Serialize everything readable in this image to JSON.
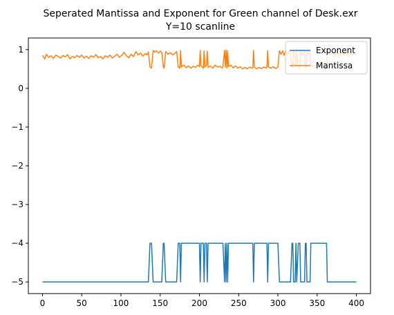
{
  "chart_data": {
    "type": "line",
    "title": "Seperated Mantissa and Exponent for Green channel of Desk.exr",
    "subtitle": "Y=10 scanline",
    "xlabel": "",
    "ylabel": "",
    "xlim": [
      -18,
      418
    ],
    "ylim": [
      -5.3,
      1.3
    ],
    "xticks": [
      0,
      50,
      100,
      150,
      200,
      250,
      300,
      350,
      400
    ],
    "yticks": [
      -5,
      -4,
      -3,
      -2,
      -1,
      0,
      1
    ],
    "grid": false,
    "legend_position": "top-right",
    "series": [
      {
        "name": "Exponent",
        "color": "#1f77b4",
        "points": [
          [
            0,
            -5
          ],
          [
            135,
            -5
          ],
          [
            137,
            -4
          ],
          [
            139,
            -4
          ],
          [
            141,
            -5
          ],
          [
            152,
            -5
          ],
          [
            154,
            -4
          ],
          [
            155,
            -4
          ],
          [
            157,
            -5
          ],
          [
            171,
            -5
          ],
          [
            173,
            -4
          ],
          [
            175,
            -4
          ],
          [
            176,
            -5
          ],
          [
            177,
            -4
          ],
          [
            200,
            -4
          ],
          [
            201,
            -5
          ],
          [
            202,
            -4
          ],
          [
            205,
            -4
          ],
          [
            206,
            -5
          ],
          [
            207,
            -4
          ],
          [
            209,
            -4
          ],
          [
            210,
            -5
          ],
          [
            211,
            -4
          ],
          [
            230,
            -4
          ],
          [
            232,
            -5
          ],
          [
            233,
            -4
          ],
          [
            234,
            -5
          ],
          [
            235,
            -4
          ],
          [
            236,
            -5
          ],
          [
            237,
            -4
          ],
          [
            268,
            -4
          ],
          [
            269,
            -5
          ],
          [
            270,
            -4
          ],
          [
            286,
            -4
          ],
          [
            287,
            -5
          ],
          [
            288,
            -4
          ],
          [
            300,
            -4
          ],
          [
            302,
            -5
          ],
          [
            316,
            -5
          ],
          [
            318,
            -4
          ],
          [
            319,
            -4
          ],
          [
            320,
            -5
          ],
          [
            322,
            -5
          ],
          [
            323,
            -4
          ],
          [
            324,
            -5
          ],
          [
            326,
            -4
          ],
          [
            328,
            -4
          ],
          [
            329,
            -5
          ],
          [
            334,
            -5
          ],
          [
            335,
            -4
          ],
          [
            336,
            -4
          ],
          [
            337,
            -5
          ],
          [
            341,
            -5
          ],
          [
            342,
            -4
          ],
          [
            362,
            -4
          ],
          [
            363,
            -5
          ],
          [
            400,
            -5
          ]
        ]
      },
      {
        "name": "Mantissa",
        "color": "#ff7f0e",
        "points": [
          [
            0,
            0.85
          ],
          [
            3,
            0.76
          ],
          [
            5,
            0.88
          ],
          [
            8,
            0.8
          ],
          [
            11,
            0.84
          ],
          [
            14,
            0.77
          ],
          [
            17,
            0.86
          ],
          [
            20,
            0.82
          ],
          [
            23,
            0.78
          ],
          [
            26,
            0.85
          ],
          [
            29,
            0.81
          ],
          [
            32,
            0.87
          ],
          [
            35,
            0.76
          ],
          [
            38,
            0.82
          ],
          [
            41,
            0.79
          ],
          [
            44,
            0.85
          ],
          [
            47,
            0.8
          ],
          [
            50,
            0.86
          ],
          [
            53,
            0.78
          ],
          [
            56,
            0.83
          ],
          [
            59,
            0.77
          ],
          [
            62,
            0.84
          ],
          [
            65,
            0.8
          ],
          [
            68,
            0.87
          ],
          [
            71,
            0.79
          ],
          [
            74,
            0.82
          ],
          [
            77,
            0.76
          ],
          [
            80,
            0.84
          ],
          [
            83,
            0.8
          ],
          [
            86,
            0.86
          ],
          [
            89,
            0.78
          ],
          [
            92,
            0.83
          ],
          [
            95,
            0.88
          ],
          [
            98,
            0.8
          ],
          [
            101,
            0.85
          ],
          [
            104,
            0.93
          ],
          [
            107,
            0.84
          ],
          [
            110,
            0.79
          ],
          [
            113,
            0.88
          ],
          [
            116,
            0.82
          ],
          [
            119,
            0.95
          ],
          [
            122,
            0.86
          ],
          [
            125,
            0.91
          ],
          [
            128,
            0.83
          ],
          [
            131,
            0.9
          ],
          [
            133,
            0.86
          ],
          [
            135,
            0.94
          ],
          [
            137,
            0.55
          ],
          [
            139,
            0.52
          ],
          [
            141,
            0.98
          ],
          [
            143,
            0.93
          ],
          [
            145,
            0.97
          ],
          [
            148,
            0.91
          ],
          [
            150,
            0.96
          ],
          [
            152,
            0.93
          ],
          [
            154,
            0.55
          ],
          [
            155,
            0.52
          ],
          [
            157,
            0.95
          ],
          [
            160,
            0.88
          ],
          [
            163,
            0.92
          ],
          [
            166,
            0.86
          ],
          [
            169,
            0.91
          ],
          [
            171,
            0.95
          ],
          [
            173,
            0.55
          ],
          [
            175,
            0.52
          ],
          [
            176,
            0.98
          ],
          [
            177,
            0.55
          ],
          [
            180,
            0.6
          ],
          [
            183,
            0.53
          ],
          [
            186,
            0.58
          ],
          [
            189,
            0.52
          ],
          [
            192,
            0.57
          ],
          [
            195,
            0.54
          ],
          [
            198,
            0.6
          ],
          [
            200,
            0.56
          ],
          [
            201,
            0.98
          ],
          [
            202,
            0.58
          ],
          [
            205,
            0.52
          ],
          [
            206,
            0.97
          ],
          [
            207,
            0.55
          ],
          [
            209,
            0.6
          ],
          [
            210,
            0.96
          ],
          [
            211,
            0.54
          ],
          [
            214,
            0.58
          ],
          [
            217,
            0.52
          ],
          [
            220,
            0.6
          ],
          [
            223,
            0.55
          ],
          [
            226,
            0.57
          ],
          [
            229,
            0.52
          ],
          [
            230,
            0.57
          ],
          [
            232,
            0.98
          ],
          [
            233,
            0.55
          ],
          [
            234,
            0.99
          ],
          [
            235,
            0.52
          ],
          [
            236,
            0.97
          ],
          [
            237,
            0.56
          ],
          [
            240,
            0.6
          ],
          [
            243,
            0.53
          ],
          [
            246,
            0.58
          ],
          [
            249,
            0.52
          ],
          [
            252,
            0.56
          ],
          [
            255,
            0.5
          ],
          [
            258,
            0.54
          ],
          [
            261,
            0.5
          ],
          [
            264,
            0.55
          ],
          [
            267,
            0.52
          ],
          [
            268,
            0.53
          ],
          [
            269,
            0.98
          ],
          [
            270,
            0.55
          ],
          [
            273,
            0.5
          ],
          [
            276,
            0.54
          ],
          [
            279,
            0.51
          ],
          [
            282,
            0.55
          ],
          [
            285,
            0.52
          ],
          [
            286,
            0.56
          ],
          [
            287,
            0.97
          ],
          [
            288,
            0.55
          ],
          [
            291,
            0.52
          ],
          [
            294,
            0.56
          ],
          [
            297,
            0.51
          ],
          [
            300,
            0.55
          ],
          [
            302,
            0.97
          ],
          [
            304,
            0.88
          ],
          [
            306,
            0.97
          ],
          [
            308,
            0.85
          ],
          [
            310,
            0.98
          ],
          [
            312,
            0.88
          ],
          [
            314,
            0.96
          ],
          [
            316,
            0.9
          ],
          [
            318,
            0.54
          ],
          [
            319,
            0.56
          ],
          [
            320,
            0.96
          ],
          [
            322,
            0.88
          ],
          [
            323,
            0.55
          ],
          [
            324,
            0.95
          ],
          [
            326,
            0.56
          ],
          [
            328,
            0.52
          ],
          [
            329,
            0.97
          ],
          [
            331,
            0.86
          ],
          [
            334,
            0.95
          ],
          [
            335,
            0.55
          ],
          [
            336,
            0.52
          ],
          [
            337,
            0.96
          ],
          [
            339,
            0.88
          ],
          [
            341,
            0.97
          ],
          [
            342,
            0.56
          ],
          [
            345,
            0.6
          ],
          [
            348,
            0.53
          ],
          [
            351,
            0.58
          ],
          [
            354,
            0.55
          ],
          [
            357,
            0.6
          ],
          [
            360,
            0.56
          ],
          [
            362,
            0.52
          ],
          [
            363,
            0.97
          ],
          [
            366,
            0.86
          ],
          [
            369,
            0.94
          ],
          [
            372,
            0.82
          ],
          [
            375,
            0.92
          ],
          [
            378,
            0.8
          ],
          [
            381,
            0.93
          ],
          [
            384,
            0.85
          ],
          [
            387,
            0.96
          ],
          [
            390,
            0.82
          ],
          [
            393,
            0.9
          ],
          [
            396,
            0.85
          ],
          [
            400,
            0.88
          ]
        ]
      }
    ]
  }
}
